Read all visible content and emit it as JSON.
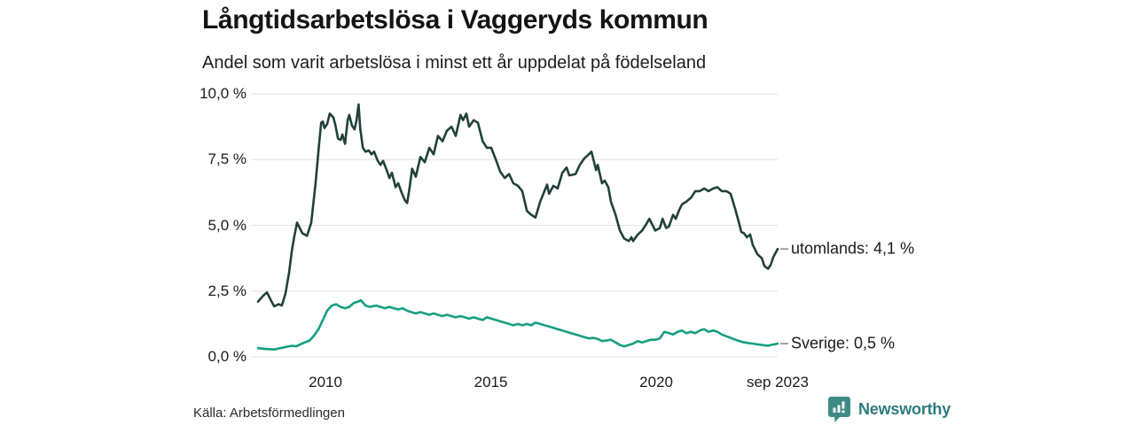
{
  "footer": {
    "source": "Källa: Arbetsförmedlingen",
    "brand": "Newsworthy"
  },
  "colors": {
    "series_utomlands": "#21413a",
    "series_sverige": "#159e82",
    "grid": "#e2e2e2",
    "brand_teal": "#2e7c7c",
    "brand_icon": "#3e8b85"
  },
  "chart_data": {
    "type": "line",
    "title": "Långtidsarbetslösa i Vaggeryds kommun",
    "subtitle": "Andel som varit arbetslösa i minst ett år uppdelat på födelseland",
    "xlim": [
      2007.8,
      2023.67
    ],
    "ylim": [
      0,
      10
    ],
    "grid": "horizontal-only",
    "legend_position": "right-end-labels",
    "x_ticks": [
      "2010",
      "2015",
      "2020",
      "sep 2023"
    ],
    "x_tick_values": [
      2010,
      2015,
      2020,
      2023.67
    ],
    "y_ticks": [
      "10,0 %",
      "7,5 %",
      "5,0 %",
      "2,5 %",
      "0,0 %"
    ],
    "y_tick_values": [
      10,
      7.5,
      5,
      2.5,
      0
    ],
    "series": [
      {
        "name": "utomlands",
        "end_label": "utomlands: 4,1 %",
        "last_value": 4.1,
        "color": "#21413a",
        "points": [
          [
            2007.96,
            2.1
          ],
          [
            2008.1,
            2.3
          ],
          [
            2008.23,
            2.45
          ],
          [
            2008.35,
            2.15
          ],
          [
            2008.45,
            1.92
          ],
          [
            2008.58,
            2.0
          ],
          [
            2008.68,
            1.95
          ],
          [
            2008.79,
            2.4
          ],
          [
            2008.9,
            3.2
          ],
          [
            2008.98,
            4.0
          ],
          [
            2009.06,
            4.6
          ],
          [
            2009.14,
            5.1
          ],
          [
            2009.3,
            4.7
          ],
          [
            2009.44,
            4.6
          ],
          [
            2009.57,
            5.1
          ],
          [
            2009.7,
            6.6
          ],
          [
            2009.8,
            8.0
          ],
          [
            2009.87,
            8.9
          ],
          [
            2009.92,
            8.95
          ],
          [
            2009.97,
            8.7
          ],
          [
            2010.05,
            8.85
          ],
          [
            2010.13,
            9.25
          ],
          [
            2010.24,
            9.1
          ],
          [
            2010.3,
            8.8
          ],
          [
            2010.38,
            8.3
          ],
          [
            2010.46,
            8.25
          ],
          [
            2010.51,
            8.45
          ],
          [
            2010.59,
            8.1
          ],
          [
            2010.67,
            9.0
          ],
          [
            2010.72,
            9.2
          ],
          [
            2010.8,
            8.8
          ],
          [
            2010.88,
            8.65
          ],
          [
            2010.94,
            9.0
          ],
          [
            2011.0,
            9.6
          ],
          [
            2011.05,
            8.7
          ],
          [
            2011.13,
            7.95
          ],
          [
            2011.21,
            7.8
          ],
          [
            2011.31,
            7.85
          ],
          [
            2011.39,
            7.7
          ],
          [
            2011.47,
            7.8
          ],
          [
            2011.58,
            7.45
          ],
          [
            2011.66,
            7.3
          ],
          [
            2011.74,
            7.45
          ],
          [
            2011.85,
            7.1
          ],
          [
            2011.93,
            6.8
          ],
          [
            2012.01,
            7.0
          ],
          [
            2012.12,
            6.45
          ],
          [
            2012.2,
            6.6
          ],
          [
            2012.3,
            6.25
          ],
          [
            2012.4,
            5.95
          ],
          [
            2012.47,
            5.85
          ],
          [
            2012.55,
            6.5
          ],
          [
            2012.62,
            7.15
          ],
          [
            2012.73,
            6.85
          ],
          [
            2012.87,
            7.6
          ],
          [
            2013.0,
            7.4
          ],
          [
            2013.14,
            7.95
          ],
          [
            2013.27,
            7.7
          ],
          [
            2013.4,
            8.4
          ],
          [
            2013.54,
            8.2
          ],
          [
            2013.67,
            8.6
          ],
          [
            2013.81,
            8.75
          ],
          [
            2013.94,
            8.4
          ],
          [
            2014.08,
            9.2
          ],
          [
            2014.16,
            9.0
          ],
          [
            2014.26,
            9.25
          ],
          [
            2014.34,
            8.75
          ],
          [
            2014.48,
            9.0
          ],
          [
            2014.61,
            8.9
          ],
          [
            2014.75,
            8.2
          ],
          [
            2014.88,
            7.95
          ],
          [
            2015.01,
            7.95
          ],
          [
            2015.15,
            7.5
          ],
          [
            2015.28,
            7.05
          ],
          [
            2015.42,
            6.8
          ],
          [
            2015.55,
            6.95
          ],
          [
            2015.68,
            6.6
          ],
          [
            2015.82,
            6.5
          ],
          [
            2015.95,
            6.3
          ],
          [
            2016.09,
            5.55
          ],
          [
            2016.22,
            5.4
          ],
          [
            2016.35,
            5.3
          ],
          [
            2016.49,
            5.9
          ],
          [
            2016.62,
            6.3
          ],
          [
            2016.7,
            6.55
          ],
          [
            2016.76,
            6.2
          ],
          [
            2016.89,
            6.5
          ],
          [
            2017.02,
            6.4
          ],
          [
            2017.16,
            7.0
          ],
          [
            2017.29,
            7.2
          ],
          [
            2017.37,
            6.9
          ],
          [
            2017.56,
            6.95
          ],
          [
            2017.69,
            7.3
          ],
          [
            2017.83,
            7.55
          ],
          [
            2017.96,
            7.7
          ],
          [
            2018.04,
            7.8
          ],
          [
            2018.18,
            7.1
          ],
          [
            2018.23,
            7.3
          ],
          [
            2018.36,
            6.6
          ],
          [
            2018.44,
            6.7
          ],
          [
            2018.55,
            6.45
          ],
          [
            2018.63,
            5.9
          ],
          [
            2018.77,
            5.4
          ],
          [
            2018.9,
            4.8
          ],
          [
            2019.03,
            4.5
          ],
          [
            2019.17,
            4.4
          ],
          [
            2019.25,
            4.55
          ],
          [
            2019.3,
            4.4
          ],
          [
            2019.44,
            4.65
          ],
          [
            2019.57,
            4.8
          ],
          [
            2019.7,
            5.05
          ],
          [
            2019.79,
            5.25
          ],
          [
            2019.89,
            5.0
          ],
          [
            2019.97,
            4.8
          ],
          [
            2020.11,
            4.9
          ],
          [
            2020.19,
            5.25
          ],
          [
            2020.3,
            4.9
          ],
          [
            2020.38,
            4.95
          ],
          [
            2020.51,
            5.4
          ],
          [
            2020.59,
            5.25
          ],
          [
            2020.7,
            5.6
          ],
          [
            2020.78,
            5.8
          ],
          [
            2020.91,
            5.9
          ],
          [
            2021.05,
            6.05
          ],
          [
            2021.18,
            6.3
          ],
          [
            2021.31,
            6.3
          ],
          [
            2021.45,
            6.4
          ],
          [
            2021.58,
            6.3
          ],
          [
            2021.72,
            6.4
          ],
          [
            2021.85,
            6.45
          ],
          [
            2021.98,
            6.3
          ],
          [
            2022.12,
            6.3
          ],
          [
            2022.25,
            6.2
          ],
          [
            2022.39,
            5.6
          ],
          [
            2022.47,
            5.25
          ],
          [
            2022.57,
            4.75
          ],
          [
            2022.65,
            4.7
          ],
          [
            2022.74,
            4.55
          ],
          [
            2022.84,
            4.65
          ],
          [
            2022.92,
            4.25
          ],
          [
            2023.06,
            3.9
          ],
          [
            2023.19,
            3.75
          ],
          [
            2023.27,
            3.45
          ],
          [
            2023.38,
            3.35
          ],
          [
            2023.46,
            3.5
          ],
          [
            2023.54,
            3.8
          ],
          [
            2023.67,
            4.1
          ]
        ]
      },
      {
        "name": "Sverige",
        "end_label": "Sverige: 0,5 %",
        "last_value": 0.5,
        "color": "#159e82",
        "points": [
          [
            2007.96,
            0.33
          ],
          [
            2008.18,
            0.3
          ],
          [
            2008.45,
            0.28
          ],
          [
            2008.71,
            0.35
          ],
          [
            2008.98,
            0.42
          ],
          [
            2009.12,
            0.4
          ],
          [
            2009.25,
            0.48
          ],
          [
            2009.38,
            0.55
          ],
          [
            2009.52,
            0.62
          ],
          [
            2009.65,
            0.8
          ],
          [
            2009.79,
            1.05
          ],
          [
            2009.92,
            1.4
          ],
          [
            2010.05,
            1.75
          ],
          [
            2010.19,
            1.95
          ],
          [
            2010.32,
            2.0
          ],
          [
            2010.46,
            1.9
          ],
          [
            2010.59,
            1.85
          ],
          [
            2010.72,
            1.9
          ],
          [
            2010.86,
            2.05
          ],
          [
            2010.99,
            2.1
          ],
          [
            2011.07,
            2.15
          ],
          [
            2011.21,
            1.95
          ],
          [
            2011.34,
            1.9
          ],
          [
            2011.53,
            1.95
          ],
          [
            2011.66,
            1.9
          ],
          [
            2011.8,
            1.85
          ],
          [
            2011.93,
            1.9
          ],
          [
            2012.06,
            1.85
          ],
          [
            2012.2,
            1.8
          ],
          [
            2012.33,
            1.85
          ],
          [
            2012.47,
            1.75
          ],
          [
            2012.6,
            1.7
          ],
          [
            2012.73,
            1.65
          ],
          [
            2012.87,
            1.7
          ],
          [
            2013.0,
            1.65
          ],
          [
            2013.14,
            1.6
          ],
          [
            2013.27,
            1.65
          ],
          [
            2013.4,
            1.6
          ],
          [
            2013.54,
            1.55
          ],
          [
            2013.67,
            1.6
          ],
          [
            2013.81,
            1.55
          ],
          [
            2013.94,
            1.5
          ],
          [
            2014.08,
            1.55
          ],
          [
            2014.21,
            1.5
          ],
          [
            2014.34,
            1.45
          ],
          [
            2014.48,
            1.5
          ],
          [
            2014.61,
            1.45
          ],
          [
            2014.75,
            1.4
          ],
          [
            2014.88,
            1.5
          ],
          [
            2015.01,
            1.45
          ],
          [
            2015.15,
            1.4
          ],
          [
            2015.28,
            1.35
          ],
          [
            2015.42,
            1.3
          ],
          [
            2015.55,
            1.25
          ],
          [
            2015.68,
            1.2
          ],
          [
            2015.82,
            1.25
          ],
          [
            2015.95,
            1.2
          ],
          [
            2016.09,
            1.25
          ],
          [
            2016.22,
            1.2
          ],
          [
            2016.35,
            1.3
          ],
          [
            2016.49,
            1.25
          ],
          [
            2016.62,
            1.2
          ],
          [
            2016.76,
            1.15
          ],
          [
            2016.89,
            1.1
          ],
          [
            2017.02,
            1.05
          ],
          [
            2017.16,
            1.0
          ],
          [
            2017.29,
            0.95
          ],
          [
            2017.42,
            0.9
          ],
          [
            2017.56,
            0.85
          ],
          [
            2017.69,
            0.8
          ],
          [
            2017.83,
            0.75
          ],
          [
            2017.96,
            0.7
          ],
          [
            2018.1,
            0.72
          ],
          [
            2018.23,
            0.68
          ],
          [
            2018.36,
            0.6
          ],
          [
            2018.5,
            0.62
          ],
          [
            2018.63,
            0.65
          ],
          [
            2018.77,
            0.55
          ],
          [
            2018.9,
            0.45
          ],
          [
            2019.03,
            0.4
          ],
          [
            2019.17,
            0.45
          ],
          [
            2019.3,
            0.5
          ],
          [
            2019.44,
            0.6
          ],
          [
            2019.57,
            0.55
          ],
          [
            2019.7,
            0.6
          ],
          [
            2019.84,
            0.65
          ],
          [
            2019.97,
            0.65
          ],
          [
            2020.11,
            0.7
          ],
          [
            2020.24,
            0.95
          ],
          [
            2020.38,
            0.9
          ],
          [
            2020.51,
            0.85
          ],
          [
            2020.65,
            0.95
          ],
          [
            2020.78,
            1.0
          ],
          [
            2020.91,
            0.9
          ],
          [
            2021.05,
            0.95
          ],
          [
            2021.18,
            0.9
          ],
          [
            2021.31,
            1.0
          ],
          [
            2021.45,
            1.05
          ],
          [
            2021.58,
            0.95
          ],
          [
            2021.72,
            1.0
          ],
          [
            2021.85,
            0.95
          ],
          [
            2021.98,
            0.85
          ],
          [
            2022.12,
            0.78
          ],
          [
            2022.25,
            0.72
          ],
          [
            2022.39,
            0.65
          ],
          [
            2022.65,
            0.55
          ],
          [
            2022.92,
            0.5
          ],
          [
            2023.19,
            0.45
          ],
          [
            2023.38,
            0.42
          ],
          [
            2023.46,
            0.45
          ],
          [
            2023.67,
            0.5
          ]
        ]
      }
    ]
  }
}
